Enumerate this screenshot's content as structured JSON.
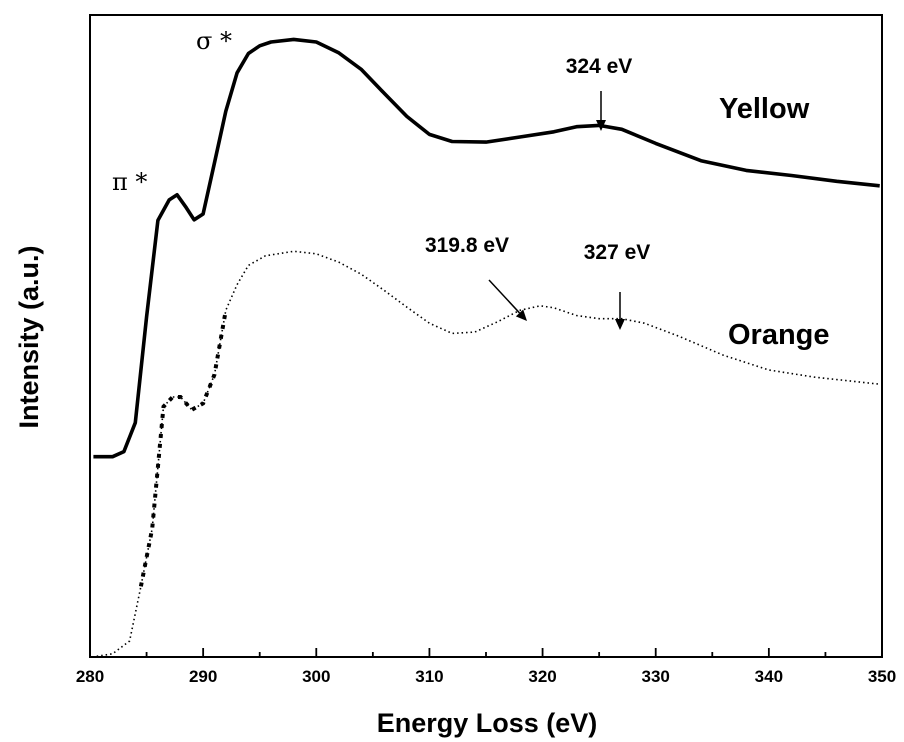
{
  "chart_data": {
    "type": "line",
    "xlabel": "Energy Loss (eV)",
    "ylabel": "Intensity (a.u.)",
    "xlim": [
      280,
      350
    ],
    "ylim": [
      0,
      1
    ],
    "x_ticks": [
      "280",
      "290",
      "300",
      "310",
      "320",
      "330",
      "340",
      "350"
    ],
    "y_ticks_labeled": false,
    "grid": false,
    "series": [
      {
        "name": "Yellow",
        "style": "solid",
        "color": "#000000",
        "points": [
          [
            280.3,
            0.312
          ],
          [
            282.0,
            0.312
          ],
          [
            283.0,
            0.32
          ],
          [
            284.0,
            0.365
          ],
          [
            285.0,
            0.53
          ],
          [
            286.0,
            0.68
          ],
          [
            287.0,
            0.712
          ],
          [
            287.7,
            0.72
          ],
          [
            288.5,
            0.7
          ],
          [
            289.2,
            0.681
          ],
          [
            290.0,
            0.69
          ],
          [
            291.0,
            0.77
          ],
          [
            292.0,
            0.85
          ],
          [
            293.0,
            0.91
          ],
          [
            294.0,
            0.94
          ],
          [
            295.0,
            0.952
          ],
          [
            296.0,
            0.958
          ],
          [
            298.0,
            0.962
          ],
          [
            300.0,
            0.958
          ],
          [
            302.0,
            0.941
          ],
          [
            304.0,
            0.915
          ],
          [
            306.0,
            0.878
          ],
          [
            308.0,
            0.842
          ],
          [
            310.0,
            0.814
          ],
          [
            312.0,
            0.803
          ],
          [
            315.0,
            0.802
          ],
          [
            318.0,
            0.81
          ],
          [
            321.0,
            0.818
          ],
          [
            323.0,
            0.826
          ],
          [
            325.0,
            0.828
          ],
          [
            327.0,
            0.822
          ],
          [
            330.0,
            0.8
          ],
          [
            334.0,
            0.773
          ],
          [
            338.0,
            0.758
          ],
          [
            342.0,
            0.75
          ],
          [
            346.0,
            0.741
          ],
          [
            349.8,
            0.734
          ]
        ]
      },
      {
        "name": "Orange",
        "style": "dotted",
        "color": "#000000",
        "points": [
          [
            280.2,
            0.0
          ],
          [
            282.0,
            0.005
          ],
          [
            283.5,
            0.025
          ],
          [
            284.5,
            0.11
          ],
          [
            285.5,
            0.2
          ],
          [
            286.5,
            0.39
          ],
          [
            287.3,
            0.405
          ],
          [
            288.0,
            0.405
          ],
          [
            289.0,
            0.385
          ],
          [
            290.0,
            0.395
          ],
          [
            291.0,
            0.44
          ],
          [
            292.0,
            0.54
          ],
          [
            293.0,
            0.58
          ],
          [
            294.0,
            0.61
          ],
          [
            295.5,
            0.625
          ],
          [
            298.0,
            0.632
          ],
          [
            300.0,
            0.628
          ],
          [
            302.0,
            0.615
          ],
          [
            304.0,
            0.596
          ],
          [
            306.0,
            0.571
          ],
          [
            308.0,
            0.545
          ],
          [
            310.0,
            0.52
          ],
          [
            312.0,
            0.504
          ],
          [
            314.0,
            0.506
          ],
          [
            316.0,
            0.522
          ],
          [
            318.0,
            0.54
          ],
          [
            319.8,
            0.547
          ],
          [
            321.0,
            0.544
          ],
          [
            323.0,
            0.532
          ],
          [
            325.0,
            0.527
          ],
          [
            327.0,
            0.527
          ],
          [
            329.0,
            0.52
          ],
          [
            332.0,
            0.5
          ],
          [
            336.0,
            0.47
          ],
          [
            340.0,
            0.447
          ],
          [
            344.0,
            0.436
          ],
          [
            349.8,
            0.425
          ]
        ]
      }
    ],
    "peak_labels": [
      "π *",
      "σ *"
    ],
    "series_labels": [
      "Yellow",
      "Orange"
    ],
    "annotations": [
      {
        "text": "324 eV",
        "arrow_to": [
          325.2,
          0.828
        ]
      },
      {
        "text": "319.8 eV",
        "arrow_to": [
          319.0,
          0.55
        ]
      },
      {
        "text": "327 eV",
        "arrow_to": [
          327.0,
          0.532
        ]
      }
    ]
  }
}
